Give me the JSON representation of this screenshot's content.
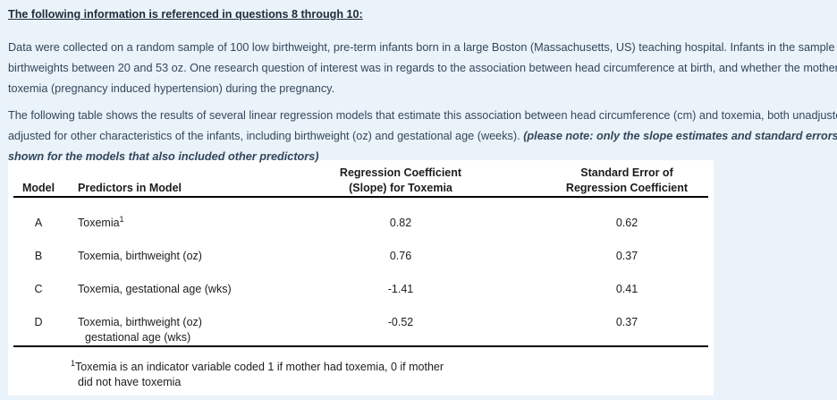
{
  "colors": {
    "background": "#eaf2fa",
    "card_background": "#ffffff",
    "body_text": "#33475b",
    "heading_text": "#202e3a",
    "table_text": "#1c1c1c",
    "rule": "#000000"
  },
  "heading": "The following information is referenced in questions 8 through 10:",
  "intro": {
    "lines": [
      "Data were collected on a random sample of 100 low birthweight, pre-term infants born in a large Boston (Massachusetts, US) teaching hospital. Infants in the sample had",
      "birthweights between 20 and 53 oz. One research question of interest was in regards to the association between head circumference at birth, and whether the mother suffered from",
      "toxemia (pregnancy induced hypertension) during the pregnancy."
    ]
  },
  "table_intro": {
    "line1": "The following table shows the results of several linear regression models that estimate this association between head circumference (cm) and toxemia, both unadjusted, and",
    "line2_normal": "adjusted for other characteristics of the infants, including birthweight (oz) and gestational age (weeks). ",
    "line2_emphasis": "(please note: only the slope estimates and standard errors for toxemia are",
    "line3_emphasis": "shown for the models that also included other predictors)"
  },
  "table": {
    "headers": {
      "model": "Model",
      "predictors": "Predictors in Model",
      "coefficient_line1": "Regression Coefficient",
      "coefficient_line2": "(Slope) for Toxemia",
      "se_line1": "Standard Error of",
      "se_line2": "Regression Coefficient"
    },
    "rows": [
      {
        "model": "A",
        "predictors": "Toxemia",
        "predictors_superscript": "1",
        "coefficient": "0.82",
        "standard_error": "0.62"
      },
      {
        "model": "B",
        "predictors": "Toxemia, birthweight (oz)",
        "coefficient": "0.76",
        "standard_error": "0.37"
      },
      {
        "model": "C",
        "predictors": "Toxemia, gestational age (wks)",
        "coefficient": "-1.41",
        "standard_error": "0.41"
      },
      {
        "model": "D",
        "predictors": "Toxemia, birthweight (oz)",
        "predictors_line2": "gestational age (wks)",
        "coefficient": "-0.52",
        "standard_error": "0.37"
      }
    ],
    "footnote": {
      "superscript": "1",
      "line1": "Toxemia is an indicator variable coded 1 if mother had toxemia, 0 if mother",
      "line2": "did not have toxemia"
    }
  }
}
